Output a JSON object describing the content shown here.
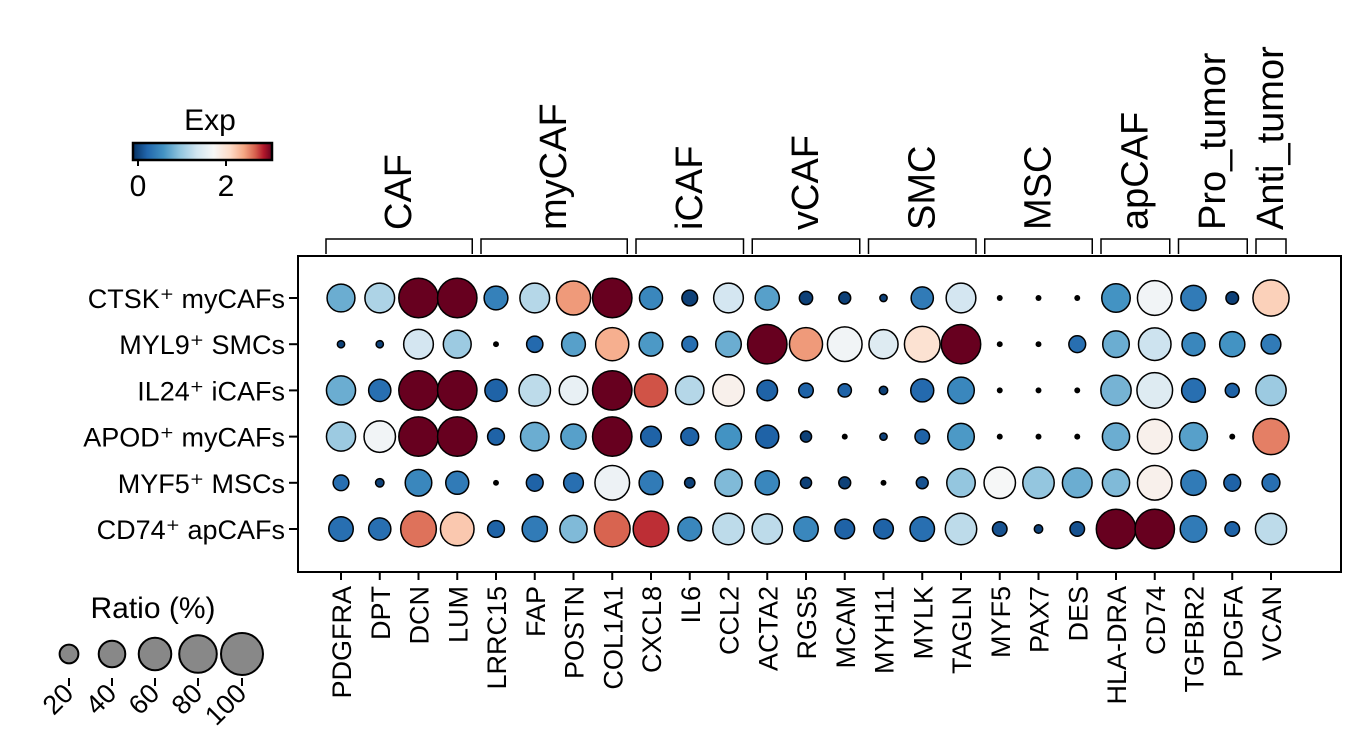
{
  "chart_data": {
    "type": "dotplot",
    "rows": [
      "CTSK⁺ myCAFs",
      "MYL9⁺ SMCs",
      "IL24⁺ iCAFs",
      "APOD⁺ myCAFs",
      "MYF5⁺ MSCs",
      "CD74⁺ apCAFs"
    ],
    "genes": [
      "PDGFRA",
      "DPT",
      "DCN",
      "LUM",
      "LRRC15",
      "FAP",
      "POSTN",
      "COL1A1",
      "CXCL8",
      "IL6",
      "CCL2",
      "ACTA2",
      "RGS5",
      "MCAM",
      "MYH11",
      "MYLK",
      "TAGLN",
      "MYF5",
      "PAX7",
      "DES",
      "HLA-DRA",
      "CD74",
      "TGFBR2",
      "PDGFA",
      "VCAN"
    ],
    "groups": [
      {
        "name": "CAF",
        "genes": [
          "PDGFRA",
          "DPT",
          "DCN",
          "LUM"
        ]
      },
      {
        "name": "myCAF",
        "genes": [
          "LRRC15",
          "FAP",
          "POSTN",
          "COL1A1"
        ]
      },
      {
        "name": "iCAF",
        "genes": [
          "CXCL8",
          "IL6",
          "CCL2"
        ]
      },
      {
        "name": "vCAF",
        "genes": [
          "ACTA2",
          "RGS5",
          "MCAM"
        ]
      },
      {
        "name": "SMC",
        "genes": [
          "MYH11",
          "MYLK",
          "TAGLN"
        ]
      },
      {
        "name": "MSC",
        "genes": [
          "MYF5",
          "PAX7",
          "DES"
        ]
      },
      {
        "name": "apCAF",
        "genes": [
          "HLA-DRA",
          "CD74"
        ]
      },
      {
        "name": "Pro_tumor",
        "genes": [
          "TGFBR2",
          "PDGFA"
        ]
      },
      {
        "name": "Anti_tumor",
        "genes": [
          "VCAN"
        ]
      }
    ],
    "ratio_percent": [
      [
        44,
        50,
        88,
        88,
        32,
        50,
        66,
        88,
        30,
        14,
        50,
        33,
        10,
        8,
        3,
        28,
        50,
        2,
        2,
        2,
        46,
        68,
        36,
        9,
        74
      ],
      [
        3,
        3,
        50,
        44,
        2,
        15,
        32,
        62,
        32,
        14,
        37,
        88,
        62,
        68,
        48,
        72,
        88,
        2,
        2,
        16,
        40,
        60,
        30,
        36,
        22
      ],
      [
        48,
        28,
        88,
        88,
        28,
        56,
        46,
        88,
        62,
        46,
        56,
        24,
        12,
        10,
        4,
        30,
        40,
        2,
        2,
        2,
        52,
        72,
        32,
        11,
        52
      ],
      [
        48,
        56,
        88,
        88,
        16,
        46,
        36,
        88,
        24,
        18,
        38,
        30,
        7,
        2,
        3,
        12,
        40,
        2,
        2,
        2,
        42,
        68,
        44,
        2,
        74
      ],
      [
        14,
        4,
        40,
        30,
        2,
        16,
        22,
        68,
        32,
        6,
        42,
        33,
        7,
        8,
        2,
        8,
        46,
        56,
        56,
        50,
        42,
        68,
        36,
        16,
        18
      ],
      [
        34,
        28,
        72,
        64,
        16,
        36,
        42,
        72,
        72,
        32,
        56,
        52,
        34,
        22,
        22,
        34,
        56,
        12,
        4,
        12,
        88,
        88,
        40,
        12,
        55
      ]
    ],
    "expression": [
      [
        0.9,
        1.25,
        3.2,
        3.2,
        0.55,
        1.3,
        2.6,
        3.2,
        0.6,
        0.1,
        1.5,
        0.8,
        0.1,
        0.1,
        0.1,
        0.5,
        1.5,
        0.1,
        0.1,
        0.1,
        0.7,
        1.8,
        0.5,
        0.1,
        2.3
      ],
      [
        0.1,
        0.1,
        1.5,
        1.15,
        0.1,
        0.35,
        0.8,
        2.5,
        0.75,
        0.4,
        0.9,
        3.2,
        2.6,
        1.8,
        1.6,
        2.15,
        3.2,
        0.1,
        0.1,
        0.4,
        0.9,
        1.45,
        0.6,
        0.7,
        0.5
      ],
      [
        0.9,
        0.4,
        3.2,
        3.2,
        0.3,
        1.35,
        1.7,
        3.2,
        2.85,
        1.3,
        1.95,
        0.3,
        0.3,
        0.3,
        0.1,
        0.35,
        0.6,
        0.1,
        0.1,
        0.1,
        0.95,
        1.6,
        0.4,
        0.3,
        1.15
      ],
      [
        1.15,
        1.8,
        3.2,
        3.2,
        0.3,
        0.9,
        0.8,
        3.2,
        0.3,
        0.3,
        0.7,
        0.3,
        0.1,
        0.1,
        0.1,
        0.3,
        0.75,
        0.1,
        0.1,
        0.1,
        0.9,
        1.95,
        0.8,
        0.1,
        2.7
      ],
      [
        0.4,
        0.1,
        0.6,
        0.5,
        0.1,
        0.3,
        0.4,
        1.75,
        0.5,
        0.1,
        1.0,
        0.6,
        0.1,
        0.1,
        0.1,
        0.2,
        1.1,
        1.85,
        1.1,
        0.9,
        1.0,
        1.95,
        0.5,
        0.3,
        0.4
      ],
      [
        0.4,
        0.4,
        2.75,
        2.35,
        0.3,
        0.5,
        1.0,
        2.8,
        2.95,
        0.6,
        1.35,
        1.35,
        0.6,
        0.3,
        0.3,
        0.4,
        1.35,
        0.2,
        0.1,
        0.2,
        3.2,
        3.2,
        0.5,
        0.3,
        1.35
      ]
    ],
    "color_legend": {
      "title": "Exp",
      "ticks": [
        "0",
        "2"
      ],
      "min": 0,
      "max": 3.2
    },
    "size_legend": {
      "title": "Ratio (%)",
      "values": [
        20,
        40,
        60,
        80,
        100
      ],
      "labels": [
        "20",
        "40",
        "60",
        "80",
        "100"
      ]
    }
  }
}
